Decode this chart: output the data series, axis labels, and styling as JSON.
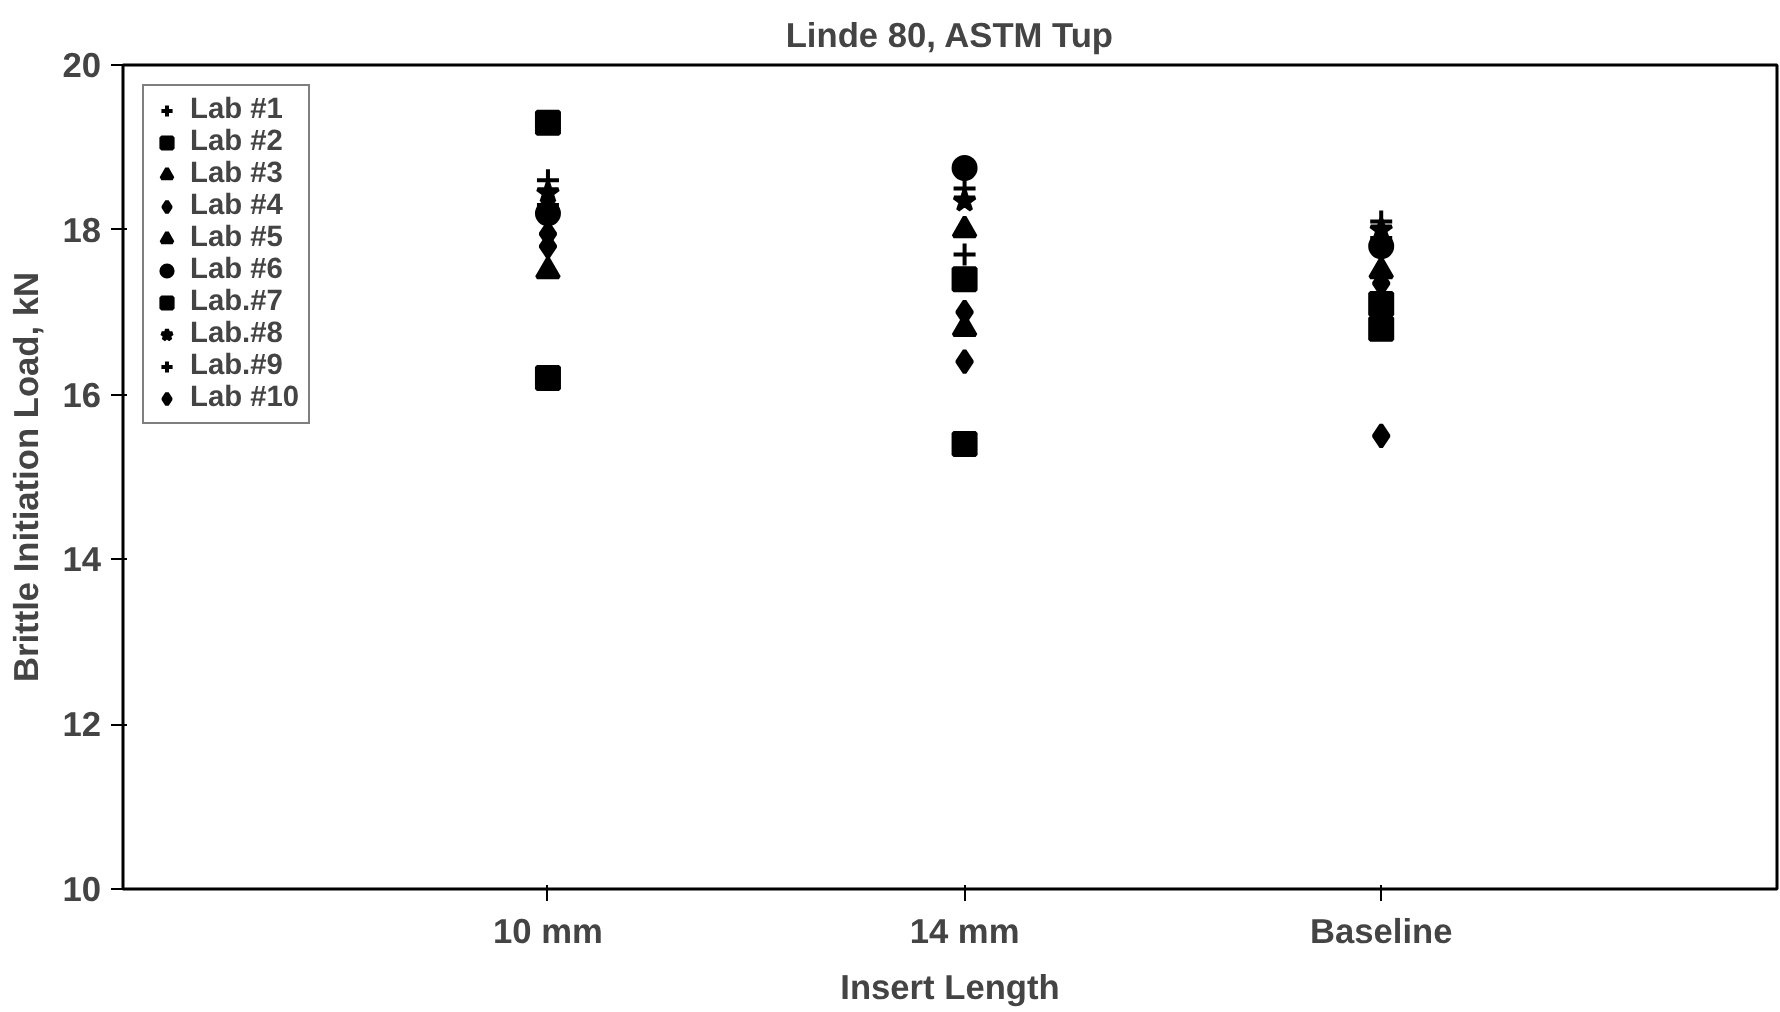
{
  "chart_data": {
    "type": "scatter",
    "title": "Linde 80, ASTM Tup",
    "xlabel": "Insert Length",
    "ylabel": "Brittle Initiation Load, kN",
    "categories": [
      "10 mm",
      "14 mm",
      "Baseline"
    ],
    "ylim": [
      10,
      20
    ],
    "yticks": [
      10,
      12,
      14,
      16,
      18,
      20
    ],
    "grid": false,
    "legend": "top left",
    "series": [
      {
        "name": "Lab #1",
        "color": "#000000",
        "marker": "cross",
        "values": [
          18.6,
          18.5,
          18.1
        ]
      },
      {
        "name": "Lab #2",
        "color": "#000000",
        "marker": "square",
        "values": [
          16.2,
          15.4,
          16.8
        ]
      },
      {
        "name": "Lab #3",
        "color": "#000000",
        "marker": "triangle",
        "values": [
          null,
          18.0,
          null
        ]
      },
      {
        "name": "Lab #4",
        "color": "#000000",
        "marker": "diamond",
        "values": [
          17.8,
          17.0,
          17.35
        ]
      },
      {
        "name": "Lab #5",
        "color": "#000000",
        "marker": "triangle",
        "values": [
          17.5,
          16.8,
          17.5
        ]
      },
      {
        "name": "Lab #6",
        "color": "#000000",
        "marker": "circle",
        "values": [
          18.2,
          18.75,
          17.8
        ]
      },
      {
        "name": "Lab.#7",
        "color": "#000000",
        "marker": "square",
        "values": [
          19.3,
          17.4,
          17.1
        ]
      },
      {
        "name": "Lab.#8",
        "color": "#000000",
        "marker": "star",
        "values": [
          18.45,
          18.35,
          18.0
        ]
      },
      {
        "name": "Lab.#9",
        "color": "#000000",
        "marker": "cross",
        "values": [
          18.3,
          17.7,
          17.9
        ]
      },
      {
        "name": "Lab #10",
        "color": "#000000",
        "marker": "diamond",
        "values": [
          17.95,
          16.4,
          15.5
        ]
      }
    ]
  }
}
